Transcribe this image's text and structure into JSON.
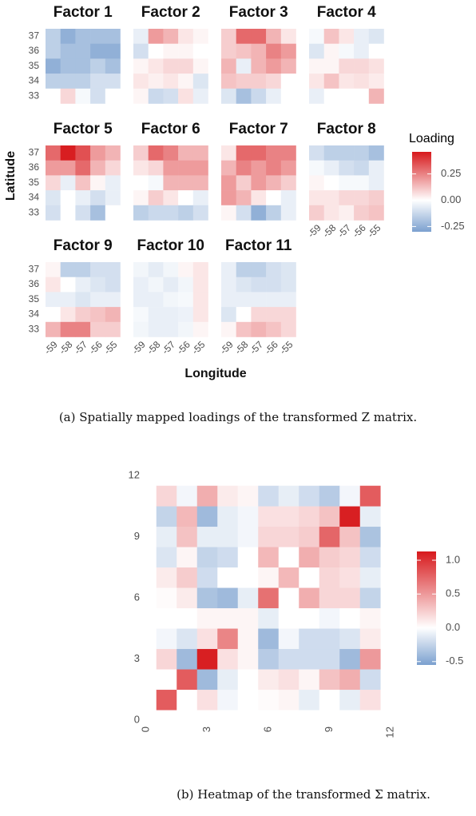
{
  "chart_data": [
    {
      "type": "heatmap_facets",
      "xlabel": "Longitude",
      "ylabel": "Latitude",
      "legend_title": "Loading",
      "x": [
        -59,
        -58,
        -57,
        -56,
        -55
      ],
      "y": [
        37,
        36,
        35,
        34,
        33
      ],
      "color_lim": [
        -0.3,
        0.46
      ],
      "color_ticks": [
        0.25,
        {
          "value": 0,
          "label": "0.00"
        },
        -0.25
      ],
      "colors": {
        "low": "#7ba0cf",
        "mid": "#ffffff",
        "high": "#d7191c"
      },
      "caption": "(a) Spatially mapped loadings of the transformed Z matrix.",
      "facets": [
        {
          "title": "Factor 1",
          "values": [
            [
              -0.15,
              -0.25,
              -0.2,
              -0.2,
              -0.2
            ],
            [
              -0.15,
              -0.2,
              -0.2,
              -0.25,
              -0.25
            ],
            [
              -0.25,
              -0.2,
              -0.2,
              -0.15,
              -0.2
            ],
            [
              -0.15,
              -0.15,
              -0.15,
              -0.1,
              -0.1
            ],
            [
              0,
              0.08,
              -0.02,
              -0.1,
              0
            ]
          ]
        },
        {
          "title": "Factor 2",
          "values": [
            [
              -0.05,
              0.2,
              0.15,
              0.05,
              0.02
            ],
            [
              -0.1,
              0,
              0.02,
              0.02,
              0
            ],
            [
              0.02,
              0.05,
              0.08,
              0.08,
              0.02
            ],
            [
              0.05,
              0.03,
              0.05,
              0.02,
              -0.08
            ],
            [
              0.02,
              -0.12,
              -0.1,
              0.06,
              -0.05
            ]
          ]
        },
        {
          "title": "Factor 3",
          "values": [
            [
              0.1,
              0.3,
              0.3,
              0.15,
              0.05
            ],
            [
              0.1,
              0.12,
              0.15,
              0.25,
              0.2
            ],
            [
              0.15,
              -0.05,
              0.15,
              0.2,
              0.15
            ],
            [
              0.12,
              0.1,
              0.1,
              0.08,
              0
            ],
            [
              -0.08,
              -0.2,
              -0.12,
              -0.05,
              0
            ]
          ]
        },
        {
          "title": "Factor 4",
          "values": [
            [
              -0.02,
              0.12,
              0.05,
              -0.05,
              -0.08
            ],
            [
              -0.08,
              0.02,
              -0.02,
              -0.05,
              0
            ],
            [
              0.02,
              0.02,
              0.08,
              0.08,
              0.06
            ],
            [
              0.05,
              0.12,
              0.05,
              0.06,
              0.04
            ],
            [
              -0.05,
              0,
              0,
              0,
              0.15
            ]
          ]
        },
        {
          "title": "Factor 5",
          "values": [
            [
              0.3,
              0.45,
              0.35,
              0.2,
              0.15
            ],
            [
              0.2,
              0.2,
              0.3,
              0.15,
              0.08
            ],
            [
              0.08,
              -0.05,
              0.12,
              0.02,
              -0.05
            ],
            [
              -0.08,
              0,
              -0.05,
              -0.1,
              -0.05
            ],
            [
              -0.1,
              0,
              -0.1,
              -0.2,
              0
            ]
          ]
        },
        {
          "title": "Factor 6",
          "values": [
            [
              0.1,
              0.3,
              0.25,
              0.15,
              0.15
            ],
            [
              0.05,
              0.08,
              0.2,
              0.2,
              0.2
            ],
            [
              0,
              -0.02,
              0.15,
              0.15,
              0.15
            ],
            [
              0.02,
              0.1,
              0.05,
              0,
              -0.05
            ],
            [
              -0.15,
              -0.12,
              -0.12,
              -0.15,
              -0.1
            ]
          ]
        },
        {
          "title": "Factor 7",
          "values": [
            [
              0.05,
              0.3,
              0.3,
              0.25,
              0.25
            ],
            [
              0.15,
              0.25,
              0.2,
              0.25,
              0.2
            ],
            [
              0.2,
              0.1,
              0.2,
              0.15,
              0.1
            ],
            [
              0.2,
              0.15,
              0.05,
              0,
              -0.05
            ],
            [
              0.02,
              -0.1,
              -0.25,
              -0.15,
              -0.05
            ]
          ]
        },
        {
          "title": "Factor 8",
          "values": [
            [
              -0.1,
              -0.15,
              -0.15,
              -0.15,
              -0.2
            ],
            [
              -0.02,
              -0.05,
              -0.1,
              -0.12,
              -0.05
            ],
            [
              0.02,
              0,
              -0.02,
              -0.02,
              -0.05
            ],
            [
              0.05,
              0.05,
              0.08,
              0.08,
              0.1
            ],
            [
              0.1,
              0.05,
              0.03,
              0.1,
              0.12
            ]
          ]
        },
        {
          "title": "Factor 9",
          "values": [
            [
              0.02,
              -0.15,
              -0.15,
              -0.1,
              -0.1
            ],
            [
              0.05,
              0,
              -0.05,
              -0.08,
              -0.1
            ],
            [
              -0.05,
              -0.05,
              -0.08,
              -0.05,
              -0.05
            ],
            [
              0,
              0.05,
              0.1,
              0.12,
              0.15
            ],
            [
              0.15,
              0.25,
              0.25,
              0.1,
              0.1
            ]
          ]
        },
        {
          "title": "Factor 10",
          "values": [
            [
              -0.03,
              -0.06,
              -0.03,
              0.02,
              0.05
            ],
            [
              -0.05,
              -0.03,
              -0.06,
              -0.03,
              0.05
            ],
            [
              -0.05,
              -0.05,
              -0.03,
              -0.02,
              0.05
            ],
            [
              -0.02,
              -0.05,
              -0.05,
              -0.04,
              0.05
            ],
            [
              -0.03,
              -0.05,
              -0.05,
              -0.03,
              0.02
            ]
          ]
        },
        {
          "title": "Factor 11",
          "values": [
            [
              -0.05,
              -0.15,
              -0.15,
              -0.1,
              -0.08
            ],
            [
              -0.05,
              -0.08,
              -0.1,
              -0.1,
              -0.08
            ],
            [
              -0.05,
              -0.05,
              -0.05,
              -0.05,
              -0.05
            ],
            [
              -0.08,
              0,
              0.08,
              0.08,
              0.08
            ],
            [
              0.02,
              0.12,
              0.15,
              0.12,
              0.08
            ]
          ]
        }
      ]
    },
    {
      "type": "heatmap",
      "x": [
        1,
        2,
        3,
        4,
        5,
        6,
        7,
        8,
        9,
        10,
        11
      ],
      "y": [
        1,
        2,
        3,
        4,
        5,
        6,
        7,
        8,
        9,
        10,
        11
      ],
      "xlim": [
        0,
        12
      ],
      "xticks": [
        0,
        3,
        6,
        9,
        12
      ],
      "ylim": [
        0,
        12
      ],
      "yticks": [
        0,
        3,
        6,
        9,
        12
      ],
      "color_lim": [
        -0.55,
        1.13
      ],
      "color_ticks": [
        {
          "value": 1,
          "label": "1.0"
        },
        0.5,
        {
          "value": 0,
          "label": "0.0"
        },
        -0.5
      ],
      "colors": {
        "low": "#7ba0cf",
        "mid": "#ffffff",
        "high": "#d7191c"
      },
      "caption": "(b) Heatmap of the transformed Σ matrix.",
      "values": [
        [
          0.8,
          0,
          0.15,
          -0.05,
          0,
          0.02,
          0.05,
          -0.1,
          0,
          -0.1,
          0.15
        ],
        [
          0,
          0.8,
          -0.4,
          -0.1,
          0,
          0.1,
          0.15,
          0.05,
          0.3,
          0.4,
          -0.2
        ],
        [
          0.2,
          -0.4,
          1.1,
          0.15,
          0.05,
          -0.3,
          -0.2,
          -0.2,
          -0.2,
          -0.4,
          0.5
        ],
        [
          -0.05,
          -0.15,
          0.15,
          0.6,
          0.05,
          -0.4,
          -0.05,
          -0.2,
          -0.2,
          -0.15,
          0.1
        ],
        [
          0,
          0,
          0.05,
          0.05,
          0.05,
          -0.1,
          0,
          0,
          -0.05,
          0,
          0.05
        ],
        [
          0.02,
          0.1,
          -0.35,
          -0.4,
          -0.1,
          0.7,
          0,
          0.4,
          0.2,
          0.2,
          -0.25
        ],
        [
          0.1,
          0.25,
          -0.2,
          0,
          0,
          0.05,
          0.35,
          0,
          0.2,
          0.15,
          -0.1
        ],
        [
          -0.15,
          0.05,
          -0.25,
          -0.2,
          0,
          0.35,
          0,
          0.4,
          0.25,
          0.2,
          -0.2
        ],
        [
          -0.1,
          0.3,
          -0.1,
          -0.1,
          -0.05,
          0.2,
          0.2,
          0.25,
          0.75,
          0.3,
          -0.35
        ],
        [
          -0.25,
          0.35,
          -0.4,
          -0.1,
          -0.05,
          0.15,
          0.15,
          0.2,
          0.3,
          1.1,
          -0.1
        ],
        [
          0.2,
          -0.05,
          0.4,
          0.1,
          0.05,
          -0.2,
          -0.1,
          -0.2,
          -0.3,
          -0.05,
          0.8
        ]
      ]
    }
  ]
}
